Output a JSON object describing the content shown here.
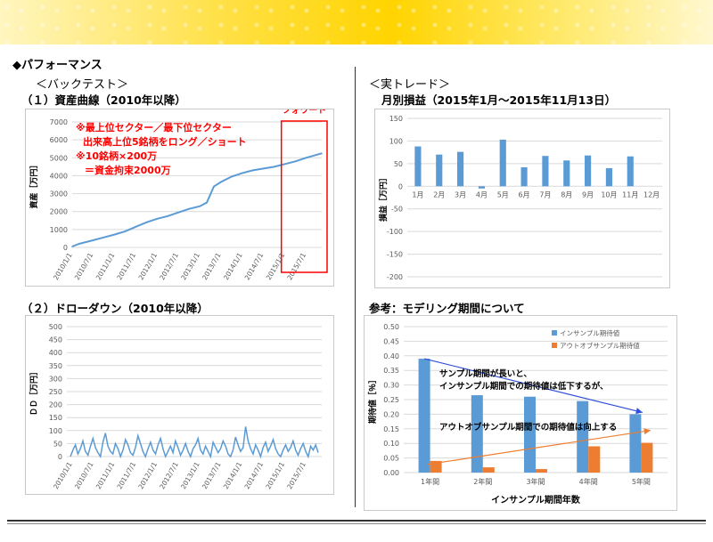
{
  "page": {
    "section_title": "◆パフォーマンス",
    "left_heading": "＜バックテスト＞",
    "right_heading": "＜実トレード＞",
    "chart1_heading": "（１）資産曲線（2010年以降）",
    "chart2_heading": "（２）ドローダウン（2010年以降）",
    "chart3_heading": "月別損益（2015年1月～2015年11月13日）",
    "chart4_heading": "参考：モデリング期間について"
  },
  "colors": {
    "line_blue": "#5b9bd5",
    "orange": "#ed7d31",
    "red": "#ff0000",
    "arrow_blue": "#2f4fd8"
  },
  "chart_data": [
    {
      "type": "line",
      "name": "equity_curve",
      "ylabel": "資産［万円］",
      "ylim": [
        0,
        7000
      ],
      "yticks": [
        "0",
        "1000",
        "2000",
        "3000",
        "4000",
        "5000",
        "6000",
        "7000"
      ],
      "xticks": [
        "2010/1/1",
        "2010/7/1",
        "2011/1/1",
        "2011/7/1",
        "2012/1/1",
        "2012/7/1",
        "2013/1/1",
        "2013/7/1",
        "2014/1/1",
        "2014/7/1",
        "2015/1/1",
        "2015/7/1"
      ],
      "x_range": [
        "2010/1/1",
        "2015/11/13"
      ],
      "series": [
        {
          "x": [
            "2010/1/1",
            "2010/3/1",
            "2010/7/1",
            "2010/10/1",
            "2011/1/1",
            "2011/4/1",
            "2011/7/1",
            "2011/10/1",
            "2012/1/1",
            "2012/4/1",
            "2012/7/1",
            "2012/10/1",
            "2013/1/1",
            "2013/3/1",
            "2013/5/1",
            "2013/7/1",
            "2013/10/1",
            "2014/1/1",
            "2014/4/1",
            "2014/7/1",
            "2014/10/1",
            "2015/1/1",
            "2015/4/1",
            "2015/7/1",
            "2015/11/13"
          ],
          "values": [
            50,
            200,
            400,
            560,
            720,
            900,
            1150,
            1400,
            1600,
            1750,
            1950,
            2150,
            2300,
            2500,
            3400,
            3650,
            3950,
            4150,
            4300,
            4400,
            4500,
            4650,
            4800,
            5000,
            5250
          ]
        }
      ],
      "forward_label": "フォワード",
      "forward_from": "2015/1/1",
      "annotation_lines": [
        "※最上位セクター／最下位セクター",
        "出来高上位5銘柄をロング／ショート",
        "※10銘柄×200万",
        "＝資金拘束2000万"
      ]
    },
    {
      "type": "line",
      "name": "drawdown",
      "ylabel": "ＤＤ［万円］",
      "ylim": [
        0,
        500
      ],
      "yticks": [
        "0",
        "50",
        "100",
        "150",
        "200",
        "250",
        "300",
        "350",
        "400",
        "450",
        "500"
      ],
      "xticks": [
        "2010/1/1",
        "2010/7/1",
        "2011/1/1",
        "2011/7/1",
        "2012/1/1",
        "2012/7/1",
        "2013/1/1",
        "2013/7/1",
        "2014/1/1",
        "2014/7/1",
        "2015/1/1",
        "2015/7/1"
      ],
      "series": [
        {
          "values": [
            0,
            25,
            45,
            10,
            30,
            60,
            20,
            5,
            40,
            70,
            35,
            15,
            0,
            55,
            90,
            40,
            20,
            10,
            50,
            30,
            0,
            25,
            65,
            45,
            15,
            5,
            35,
            80,
            50,
            20,
            0,
            30,
            55,
            25,
            10,
            45,
            70,
            30,
            0,
            20,
            40,
            15,
            60,
            35,
            5,
            25,
            50,
            20,
            0,
            30,
            45,
            70,
            25,
            10,
            40,
            20,
            0,
            55,
            35,
            15,
            30,
            60,
            40,
            10,
            0,
            25,
            75,
            45,
            20,
            35,
            115,
            60,
            30,
            10,
            45,
            25,
            0,
            35,
            55,
            20,
            40,
            65,
            30,
            10,
            0,
            25,
            45,
            20,
            35,
            60,
            25,
            5,
            30,
            50,
            20,
            0,
            40,
            25,
            45,
            15
          ]
        }
      ]
    },
    {
      "type": "bar",
      "name": "monthly_pnl",
      "ylabel": "損益［万円］",
      "ylim": [
        -200,
        150
      ],
      "yticks": [
        "-200",
        "-150",
        "-100",
        "-50",
        "0",
        "50",
        "100",
        "150"
      ],
      "categories": [
        "1月",
        "2月",
        "3月",
        "4月",
        "5月",
        "6月",
        "7月",
        "8月",
        "9月",
        "10月",
        "11月",
        "12月"
      ],
      "values": [
        88,
        70,
        76,
        -5,
        103,
        42,
        67,
        57,
        68,
        40,
        66,
        null
      ]
    },
    {
      "type": "bar",
      "name": "modeling_period",
      "xlabel": "インサンプル期間年数",
      "ylabel": "期待値［％］",
      "ylim": [
        0,
        0.5
      ],
      "yticks": [
        "0.00",
        "0.05",
        "0.10",
        "0.15",
        "0.20",
        "0.25",
        "0.30",
        "0.35",
        "0.40",
        "0.45",
        "0.50"
      ],
      "categories": [
        "1年間",
        "2年間",
        "3年間",
        "4年間",
        "5年間"
      ],
      "series": [
        {
          "name": "インサンプル期待値",
          "color": "#5b9bd5",
          "values": [
            0.39,
            0.265,
            0.26,
            0.245,
            0.2
          ]
        },
        {
          "name": "アウトオブサンプル期待値",
          "color": "#ed7d31",
          "values": [
            0.04,
            0.018,
            0.012,
            0.09,
            0.102
          ]
        }
      ],
      "annotations": [
        "サンプル期間が長いと、",
        "インサンプル期間での期待値は低下するが、",
        "アウトオブサンプル期間での期待値は向上する"
      ],
      "legend_position": "top-right"
    }
  ]
}
